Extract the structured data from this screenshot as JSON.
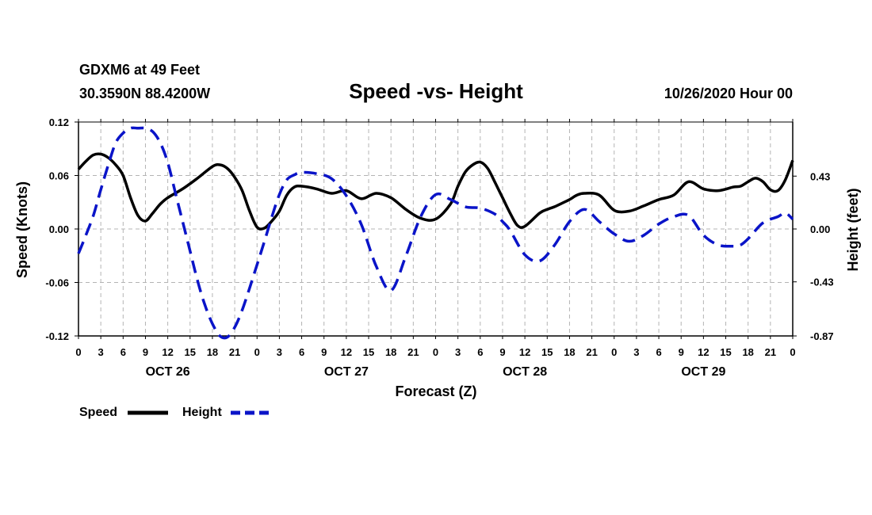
{
  "header": {
    "station": "GDXM6 at 49 Feet",
    "coords": "30.3590N 88.4200W",
    "title": "Speed -vs- Height",
    "date": "10/26/2020 Hour 00"
  },
  "colors": {
    "speed": "#000000",
    "height": "#0a14c8",
    "grid": "#b4b4b4"
  },
  "legend": {
    "speed_label": "Speed",
    "height_label": "Height"
  },
  "chart_data": {
    "type": "line",
    "title": "Speed -vs- Height",
    "xlabel": "Forecast (Z)",
    "ylabel_left": "Speed (Knots)",
    "ylabel_right": "Height (feet)",
    "x_unit": "forecast hour",
    "xlim": [
      0,
      96
    ],
    "ylim_left": [
      -0.12,
      0.12
    ],
    "ylim_right": [
      -0.87,
      0.87
    ],
    "yticks_left": [
      "0.12",
      "0.06",
      "0.00",
      "-0.06",
      "-0.12"
    ],
    "yticks_left_values": [
      0.12,
      0.06,
      0.0,
      -0.06,
      -0.12
    ],
    "yticks_right": [
      "0.43",
      "0.00",
      "-0.43",
      "-0.87"
    ],
    "yticks_right_values": [
      0.43,
      0.0,
      -0.43,
      -0.87
    ],
    "xtick_hours": [
      0,
      3,
      6,
      9,
      12,
      15,
      18,
      21,
      24,
      27,
      30,
      33,
      36,
      39,
      42,
      45,
      48,
      51,
      54,
      57,
      60,
      63,
      66,
      69,
      72,
      75,
      78,
      81,
      84,
      87,
      90,
      93,
      96
    ],
    "xtick_labels": [
      "0",
      "3",
      "6",
      "9",
      "12",
      "15",
      "18",
      "21",
      "0",
      "3",
      "6",
      "9",
      "12",
      "15",
      "18",
      "21",
      "0",
      "3",
      "6",
      "9",
      "12",
      "15",
      "18",
      "21",
      "0",
      "3",
      "6",
      "9",
      "12",
      "15",
      "18",
      "21",
      "0"
    ],
    "day_labels": [
      {
        "label": "OCT 26",
        "hour": 12
      },
      {
        "label": "OCT 27",
        "hour": 36
      },
      {
        "label": "OCT 28",
        "hour": 60
      },
      {
        "label": "OCT 29",
        "hour": 84
      }
    ],
    "series": [
      {
        "name": "Speed",
        "axis": "left",
        "style": "solid",
        "x": [
          0,
          1,
          2,
          3,
          4,
          5,
          6,
          7,
          8,
          9,
          10,
          11,
          12,
          14,
          16,
          18,
          19,
          20,
          21,
          22,
          23,
          24,
          25,
          26,
          27,
          28,
          29,
          30,
          32,
          34,
          36,
          38,
          40,
          42,
          44,
          46,
          48,
          50,
          51,
          52,
          53,
          54,
          55,
          56,
          57,
          58,
          59,
          60,
          62,
          63,
          64,
          65,
          66,
          67,
          68,
          70,
          72,
          74,
          76,
          78,
          80,
          82,
          84,
          86,
          88,
          89,
          90,
          91,
          92,
          93,
          94,
          95,
          96
        ],
        "values": [
          0.067,
          0.076,
          0.083,
          0.084,
          0.08,
          0.072,
          0.06,
          0.035,
          0.015,
          0.009,
          0.018,
          0.028,
          0.035,
          0.045,
          0.057,
          0.07,
          0.072,
          0.068,
          0.058,
          0.043,
          0.02,
          0.002,
          0.001,
          0.009,
          0.02,
          0.038,
          0.047,
          0.048,
          0.045,
          0.04,
          0.043,
          0.034,
          0.04,
          0.035,
          0.022,
          0.012,
          0.011,
          0.028,
          0.048,
          0.064,
          0.072,
          0.075,
          0.068,
          0.052,
          0.035,
          0.018,
          0.004,
          0.003,
          0.018,
          0.022,
          0.025,
          0.029,
          0.033,
          0.038,
          0.04,
          0.038,
          0.021,
          0.02,
          0.026,
          0.033,
          0.038,
          0.053,
          0.045,
          0.043,
          0.047,
          0.048,
          0.053,
          0.057,
          0.053,
          0.044,
          0.043,
          0.055,
          0.077
        ]
      },
      {
        "name": "Height",
        "axis": "right",
        "style": "dashed",
        "x": [
          0,
          1,
          2,
          3,
          4,
          5,
          6,
          7,
          8,
          9,
          10,
          11,
          12,
          13,
          14,
          15,
          16,
          17,
          18,
          19,
          20,
          21,
          22,
          23,
          24,
          25,
          26,
          27,
          28,
          29,
          30,
          32,
          34,
          36,
          38,
          40,
          42,
          44,
          46,
          48,
          50,
          52,
          54,
          56,
          57,
          58,
          60,
          62,
          64,
          66,
          68,
          70,
          72,
          74,
          76,
          78,
          80,
          82,
          84,
          86,
          88,
          89,
          90,
          92,
          94,
          95,
          96
        ],
        "values": [
          -0.2,
          -0.05,
          0.11,
          0.32,
          0.52,
          0.7,
          0.78,
          0.82,
          0.82,
          0.82,
          0.79,
          0.7,
          0.54,
          0.3,
          0.06,
          -0.18,
          -0.42,
          -0.62,
          -0.77,
          -0.87,
          -0.88,
          -0.8,
          -0.66,
          -0.48,
          -0.29,
          -0.1,
          0.1,
          0.28,
          0.4,
          0.44,
          0.46,
          0.45,
          0.41,
          0.27,
          0.04,
          -0.3,
          -0.5,
          -0.22,
          0.1,
          0.28,
          0.24,
          0.18,
          0.17,
          0.12,
          0.06,
          -0.01,
          -0.21,
          -0.26,
          -0.13,
          0.06,
          0.16,
          0.06,
          -0.04,
          -0.1,
          -0.05,
          0.04,
          0.1,
          0.11,
          -0.05,
          -0.13,
          -0.14,
          -0.13,
          -0.08,
          0.05,
          0.1,
          0.13,
          0.08
        ]
      }
    ]
  }
}
